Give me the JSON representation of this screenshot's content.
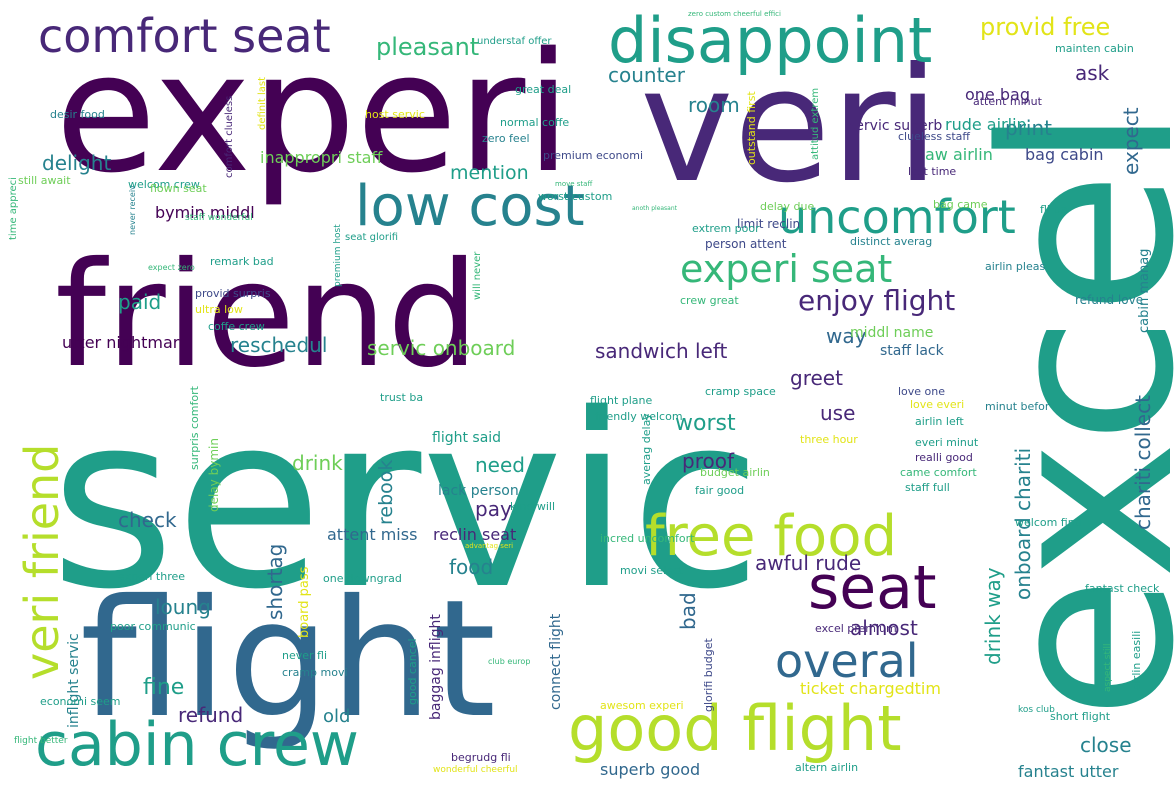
{
  "palette": {
    "purple-dark": "#440154",
    "purple": "#482878",
    "indigo": "#3e4989",
    "blue": "#31688e",
    "teal-blue": "#26828e",
    "teal": "#1f9e89",
    "green-teal": "#35b779",
    "green": "#6ece58",
    "lime": "#b5de2b",
    "yellow": "#e2e418"
  },
  "words": [
    {
      "text": "servic",
      "color": "teal"
    },
    {
      "text": "experi",
      "color": "purple-dark"
    },
    {
      "text": "friend",
      "color": "purple-dark"
    },
    {
      "text": "flight",
      "color": "blue"
    },
    {
      "text": "excel",
      "color": "teal"
    },
    {
      "text": "veri",
      "color": "purple"
    },
    {
      "text": "disappoint",
      "color": "teal"
    },
    {
      "text": "comfort seat",
      "color": "purple"
    },
    {
      "text": "low cost",
      "color": "teal-blue"
    },
    {
      "text": "uncomfort",
      "color": "teal"
    },
    {
      "text": "cabin crew",
      "color": "teal"
    },
    {
      "text": "good flight",
      "color": "lime"
    },
    {
      "text": "free food",
      "color": "lime"
    },
    {
      "text": "overal",
      "color": "blue"
    },
    {
      "text": "seat",
      "color": "purple-dark"
    },
    {
      "text": "veri friend",
      "color": "lime"
    },
    {
      "text": "experi seat",
      "color": "green-teal"
    },
    {
      "text": "enjoy flight",
      "color": "purple"
    },
    {
      "text": "pleasant",
      "color": "green-teal"
    },
    {
      "text": "provid free",
      "color": "yellow"
    },
    {
      "text": "counter",
      "color": "teal-blue"
    },
    {
      "text": "room",
      "color": "teal-blue"
    },
    {
      "text": "delight",
      "color": "teal-blue"
    },
    {
      "text": "mention",
      "color": "teal"
    },
    {
      "text": "paid",
      "color": "teal"
    },
    {
      "text": "reschedul",
      "color": "teal-blue"
    },
    {
      "text": "servic onboard",
      "color": "green"
    },
    {
      "text": "sandwich left",
      "color": "purple"
    },
    {
      "text": "utter nightmar",
      "color": "purple-dark"
    },
    {
      "text": "way",
      "color": "blue"
    },
    {
      "text": "greet",
      "color": "purple"
    },
    {
      "text": "worst",
      "color": "teal"
    },
    {
      "text": "use",
      "color": "purple"
    },
    {
      "text": "proof",
      "color": "purple"
    },
    {
      "text": "need",
      "color": "teal"
    },
    {
      "text": "drink",
      "color": "green"
    },
    {
      "text": "rebook",
      "color": "teal-blue"
    },
    {
      "text": "check",
      "color": "blue"
    },
    {
      "text": "pay",
      "color": "purple"
    },
    {
      "text": "shortag",
      "color": "blue"
    },
    {
      "text": "attent miss",
      "color": "blue"
    },
    {
      "text": "reclin seat",
      "color": "purple"
    },
    {
      "text": "food",
      "color": "teal-blue"
    },
    {
      "text": "loung",
      "color": "teal-blue"
    },
    {
      "text": "fine",
      "color": "teal"
    },
    {
      "text": "refund",
      "color": "purple"
    },
    {
      "text": "old",
      "color": "teal-blue"
    },
    {
      "text": "almost",
      "color": "purple"
    },
    {
      "text": "bad",
      "color": "blue"
    },
    {
      "text": "awful rude",
      "color": "purple"
    },
    {
      "text": "drink way",
      "color": "teal"
    },
    {
      "text": "onboard chariti",
      "color": "teal-blue"
    },
    {
      "text": "chariti collect",
      "color": "blue"
    },
    {
      "text": "expect",
      "color": "blue"
    },
    {
      "text": "print",
      "color": "teal-blue"
    },
    {
      "text": "ask",
      "color": "purple"
    },
    {
      "text": "close",
      "color": "teal-blue"
    },
    {
      "text": "fantast utter",
      "color": "teal-blue"
    },
    {
      "text": "superb good",
      "color": "blue"
    },
    {
      "text": "ticket chargedtim",
      "color": "yellow"
    },
    {
      "text": "staff lack",
      "color": "blue"
    },
    {
      "text": "bymin middl",
      "color": "purple-dark"
    },
    {
      "text": "inappropri staff",
      "color": "green"
    },
    {
      "text": "one bag",
      "color": "purple"
    },
    {
      "text": "rude airlin",
      "color": "teal"
    },
    {
      "text": "servic superb",
      "color": "purple"
    },
    {
      "text": "bag cabin",
      "color": "indigo"
    },
    {
      "text": "aw airlin",
      "color": "green-teal"
    },
    {
      "text": "middl name",
      "color": "green"
    },
    {
      "text": "person attent",
      "color": "indigo"
    },
    {
      "text": "limit reclin",
      "color": "indigo"
    },
    {
      "text": "flight said",
      "color": "teal"
    },
    {
      "text": "lack person",
      "color": "teal-blue"
    },
    {
      "text": "connect flight",
      "color": "blue"
    },
    {
      "text": "baggag inflight",
      "color": "purple"
    },
    {
      "text": "inflight servic",
      "color": "teal-blue"
    },
    {
      "text": "board pass",
      "color": "yellow"
    },
    {
      "text": "good cancel",
      "color": "teal"
    },
    {
      "text": "cabin manag",
      "color": "teal-blue"
    },
    {
      "text": "refund love",
      "color": "teal-blue"
    },
    {
      "text": "great deal",
      "color": "teal"
    },
    {
      "text": "zero feel",
      "color": "teal-blue"
    },
    {
      "text": "normal coffe",
      "color": "teal"
    },
    {
      "text": "premium economi",
      "color": "indigo"
    },
    {
      "text": "host servic",
      "color": "yellow"
    },
    {
      "text": "desir food",
      "color": "teal-blue"
    },
    {
      "text": "welcom crew",
      "color": "teal"
    },
    {
      "text": "still await",
      "color": "green"
    },
    {
      "text": "flown seat",
      "color": "green"
    },
    {
      "text": "provid surpris",
      "color": "indigo"
    },
    {
      "text": "ultra low",
      "color": "yellow"
    },
    {
      "text": "coffe crew",
      "color": "teal"
    },
    {
      "text": "remark bad",
      "color": "teal"
    },
    {
      "text": "delay bymin",
      "color": "green"
    },
    {
      "text": "surpris comfort",
      "color": "green-teal"
    },
    {
      "text": "time appreci",
      "color": "green-teal"
    },
    {
      "text": "staff wonderful",
      "color": "green-teal"
    },
    {
      "text": "economi seem",
      "color": "teal"
    },
    {
      "text": "experi three",
      "color": "teal"
    },
    {
      "text": "poor communic",
      "color": "teal"
    },
    {
      "text": "never fli",
      "color": "teal"
    },
    {
      "text": "cramp movi",
      "color": "teal-blue"
    },
    {
      "text": "flight better",
      "color": "green-teal"
    },
    {
      "text": "comfort clueless",
      "color": "purple"
    },
    {
      "text": "definit last",
      "color": "yellow"
    },
    {
      "text": "understaf offer",
      "color": "teal"
    },
    {
      "text": "zero custom cheerful effici",
      "color": "green-teal"
    },
    {
      "text": "mainten cabin",
      "color": "teal"
    },
    {
      "text": "attent minut",
      "color": "purple"
    },
    {
      "text": "clueless staff",
      "color": "indigo"
    },
    {
      "text": "last time",
      "color": "purple"
    },
    {
      "text": "outstand first",
      "color": "yellow"
    },
    {
      "text": "attitud extrem",
      "color": "green-teal"
    },
    {
      "text": "extrem poor",
      "color": "teal"
    },
    {
      "text": "bag came",
      "color": "green"
    },
    {
      "text": "fli ba",
      "color": "teal"
    },
    {
      "text": "delay due",
      "color": "green"
    },
    {
      "text": "distinct averag",
      "color": "teal-blue"
    },
    {
      "text": "airlin pleas",
      "color": "teal-blue"
    },
    {
      "text": "crew great",
      "color": "green-teal"
    },
    {
      "text": "worst custom",
      "color": "teal"
    },
    {
      "text": "seat glorifi",
      "color": "teal"
    },
    {
      "text": "premium host",
      "color": "teal"
    },
    {
      "text": "will never",
      "color": "green-teal"
    },
    {
      "text": "never receiv",
      "color": "teal-blue"
    },
    {
      "text": "expect zero",
      "color": "green-teal"
    },
    {
      "text": "move staff",
      "color": "green-teal"
    },
    {
      "text": "anoth pleasant",
      "color": "green-teal"
    },
    {
      "text": "trust ba",
      "color": "teal"
    },
    {
      "text": "flight plane",
      "color": "teal"
    },
    {
      "text": "friendly welcom",
      "color": "teal"
    },
    {
      "text": "cramp space",
      "color": "teal"
    },
    {
      "text": "averag delay",
      "color": "teal"
    },
    {
      "text": "love one",
      "color": "indigo"
    },
    {
      "text": "love everi",
      "color": "yellow"
    },
    {
      "text": "airlin left",
      "color": "teal"
    },
    {
      "text": "minut befor",
      "color": "teal-blue"
    },
    {
      "text": "three hour",
      "color": "yellow"
    },
    {
      "text": "everi minut",
      "color": "teal"
    },
    {
      "text": "realli good",
      "color": "purple"
    },
    {
      "text": "came comfort",
      "color": "green-teal"
    },
    {
      "text": "budget airlin",
      "color": "green"
    },
    {
      "text": "staff full",
      "color": "teal"
    },
    {
      "text": "fair good",
      "color": "teal"
    },
    {
      "text": "kind will",
      "color": "teal"
    },
    {
      "text": "incred uncomfort",
      "color": "green-teal"
    },
    {
      "text": "advantag seri",
      "color": "yellow"
    },
    {
      "text": "movi select",
      "color": "teal"
    },
    {
      "text": "welcom find",
      "color": "teal"
    },
    {
      "text": "fantast check",
      "color": "teal"
    },
    {
      "text": "excel premium",
      "color": "purple"
    },
    {
      "text": "club europ",
      "color": "green-teal"
    },
    {
      "text": "glorifi budget",
      "color": "indigo"
    },
    {
      "text": "aspect still",
      "color": "green-teal"
    },
    {
      "text": "airlin easili",
      "color": "teal"
    },
    {
      "text": "kos club",
      "color": "teal"
    },
    {
      "text": "short flight",
      "color": "teal"
    },
    {
      "text": "awesom experi",
      "color": "yellow"
    },
    {
      "text": "begrudg fli",
      "color": "purple"
    },
    {
      "text": "wonderful cheerful",
      "color": "yellow"
    },
    {
      "text": "altern airlin",
      "color": "teal"
    },
    {
      "text": "one downgrad",
      "color": "teal"
    }
  ]
}
